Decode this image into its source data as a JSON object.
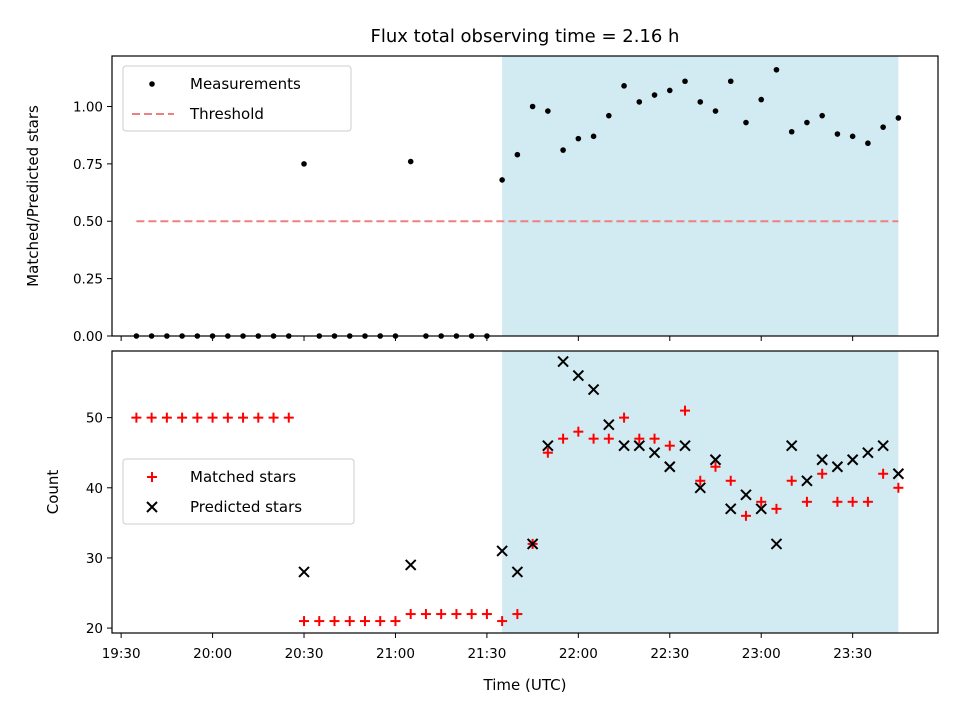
{
  "chart_data": {
    "type": "scatter",
    "title": "Flux total observing time = 2.16 h",
    "xlabel": "Time (UTC)",
    "x_tick_labels": [
      "19:30",
      "20:00",
      "20:30",
      "21:00",
      "21:30",
      "22:00",
      "22:30",
      "23:00",
      "23:30"
    ],
    "x_tick_values": [
      "19:30",
      "20:00",
      "20:30",
      "21:00",
      "21:30",
      "22:00",
      "22:30",
      "23:00",
      "23:30"
    ],
    "xlim": [
      "19:27",
      "23:58"
    ],
    "shaded_interval": [
      "21:35",
      "23:45"
    ],
    "shade_color": "#add8e6",
    "panels": [
      {
        "ylabel": "Matched/Predicted stars",
        "ylim": [
          0,
          1.22
        ],
        "y_ticks": [
          "0.00",
          "0.25",
          "0.50",
          "0.75",
          "1.00"
        ],
        "legend_position": "upper left",
        "series": [
          {
            "name": "Measurements",
            "kind": "dot",
            "color": "#000000",
            "x": [
              "19:35",
              "19:40",
              "19:45",
              "19:50",
              "19:55",
              "20:00",
              "20:05",
              "20:10",
              "20:15",
              "20:20",
              "20:25",
              "20:30",
              "20:35",
              "20:40",
              "20:45",
              "20:50",
              "20:55",
              "21:00",
              "21:05",
              "21:10",
              "21:15",
              "21:20",
              "21:25",
              "21:30",
              "21:35",
              "21:40",
              "21:45",
              "21:50",
              "21:55",
              "22:00",
              "22:05",
              "22:10",
              "22:15",
              "22:20",
              "22:25",
              "22:30",
              "22:35",
              "22:40",
              "22:45",
              "22:50",
              "22:55",
              "23:00",
              "23:05",
              "23:10",
              "23:15",
              "23:20",
              "23:25",
              "23:30",
              "23:35",
              "23:40",
              "23:45"
            ],
            "y": [
              0,
              0,
              0,
              0,
              0,
              0,
              0,
              0,
              0,
              0,
              0,
              0.75,
              0,
              0,
              0,
              0,
              0,
              0,
              0.76,
              0,
              0,
              0,
              0,
              0,
              0.68,
              0.79,
              1.0,
              0.98,
              0.81,
              0.86,
              0.87,
              0.96,
              1.09,
              1.02,
              1.05,
              1.07,
              1.11,
              1.02,
              0.98,
              1.11,
              0.93,
              1.03,
              1.16,
              0.89,
              0.93,
              0.96,
              0.88,
              0.87,
              0.84,
              0.91,
              0.95
            ]
          },
          {
            "name": "Threshold",
            "kind": "dashed-line",
            "color": "#f08080",
            "x": [
              "19:35",
              "23:45"
            ],
            "y": [
              0.5,
              0.5
            ]
          }
        ]
      },
      {
        "ylabel": "Count",
        "ylim": [
          19.3,
          59.5
        ],
        "y_ticks": [
          "20",
          "30",
          "40",
          "50"
        ],
        "legend_position": "center left",
        "series": [
          {
            "name": "Matched stars",
            "kind": "plus",
            "color": "#ff0000",
            "x": [
              "19:35",
              "19:40",
              "19:45",
              "19:50",
              "19:55",
              "20:00",
              "20:05",
              "20:10",
              "20:15",
              "20:20",
              "20:25",
              "20:30",
              "20:35",
              "20:40",
              "20:45",
              "20:50",
              "20:55",
              "21:00",
              "21:05",
              "21:10",
              "21:15",
              "21:20",
              "21:25",
              "21:30",
              "21:35",
              "21:40",
              "21:45",
              "21:50",
              "21:55",
              "22:00",
              "22:05",
              "22:10",
              "22:15",
              "22:20",
              "22:25",
              "22:30",
              "22:35",
              "22:40",
              "22:45",
              "22:50",
              "22:55",
              "23:00",
              "23:05",
              "23:10",
              "23:15",
              "23:20",
              "23:25",
              "23:30",
              "23:35",
              "23:40",
              "23:45"
            ],
            "y": [
              50,
              50,
              50,
              50,
              50,
              50,
              50,
              50,
              50,
              50,
              50,
              21,
              21,
              21,
              21,
              21,
              21,
              21,
              22,
              22,
              22,
              22,
              22,
              22,
              21,
              22,
              32,
              45,
              47,
              48,
              47,
              47,
              50,
              47,
              47,
              46,
              51,
              41,
              43,
              41,
              36,
              38,
              37,
              41,
              38,
              42,
              38,
              38,
              38,
              42,
              40
            ]
          },
          {
            "name": "Predicted stars",
            "kind": "cross",
            "color": "#000000",
            "x": [
              "20:30",
              "21:05",
              "21:35",
              "21:40",
              "21:45",
              "21:50",
              "21:55",
              "22:00",
              "22:05",
              "22:10",
              "22:15",
              "22:20",
              "22:25",
              "22:30",
              "22:35",
              "22:40",
              "22:45",
              "22:50",
              "22:55",
              "23:00",
              "23:05",
              "23:10",
              "23:15",
              "23:20",
              "23:25",
              "23:30",
              "23:35",
              "23:40",
              "23:45"
            ],
            "y": [
              28,
              29,
              31,
              28,
              32,
              46,
              58,
              56,
              54,
              49,
              46,
              46,
              45,
              43,
              46,
              40,
              44,
              37,
              39,
              37,
              32,
              46,
              41,
              44,
              43,
              44,
              45,
              46,
              42
            ]
          }
        ]
      }
    ]
  }
}
